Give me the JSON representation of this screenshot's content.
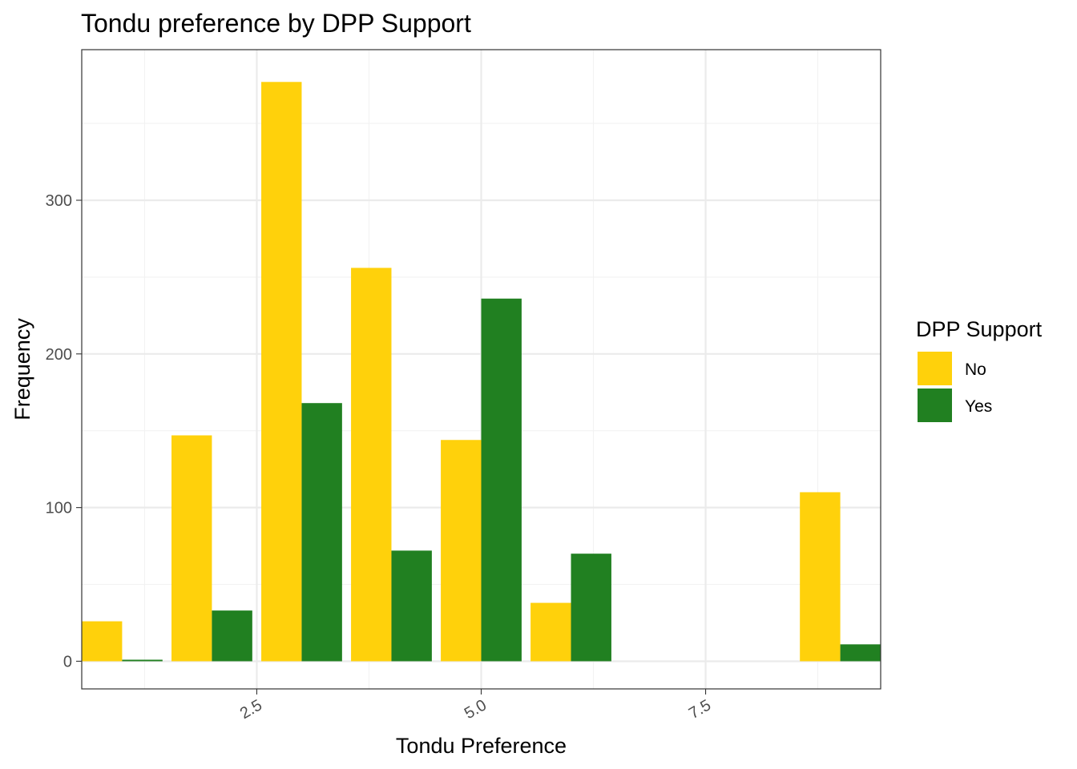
{
  "chart_data": {
    "type": "bar",
    "title": "Tondu preference by DPP Support",
    "xlabel": "Tondu Preference",
    "ylabel": "Frequency",
    "xlim": [
      0.55,
      9.45
    ],
    "ylim": [
      -18,
      398
    ],
    "x_ticks": [
      2.5,
      5.0,
      7.5
    ],
    "x_tick_labels": [
      "2.5",
      "5.0",
      "7.5"
    ],
    "y_ticks": [
      0,
      100,
      200,
      300
    ],
    "y_tick_labels": [
      "0",
      "100",
      "200",
      "300"
    ],
    "grid": true,
    "legend": {
      "title": "DPP Support",
      "position": "right"
    },
    "x": [
      1,
      2,
      3,
      4,
      5,
      6,
      9
    ],
    "series": [
      {
        "name": "No",
        "color": "#FFD10B",
        "values": [
          26,
          147,
          377,
          256,
          144,
          38,
          110
        ]
      },
      {
        "name": "Yes",
        "color": "#218021",
        "values": [
          1,
          33,
          168,
          72,
          236,
          70,
          11
        ]
      }
    ]
  }
}
